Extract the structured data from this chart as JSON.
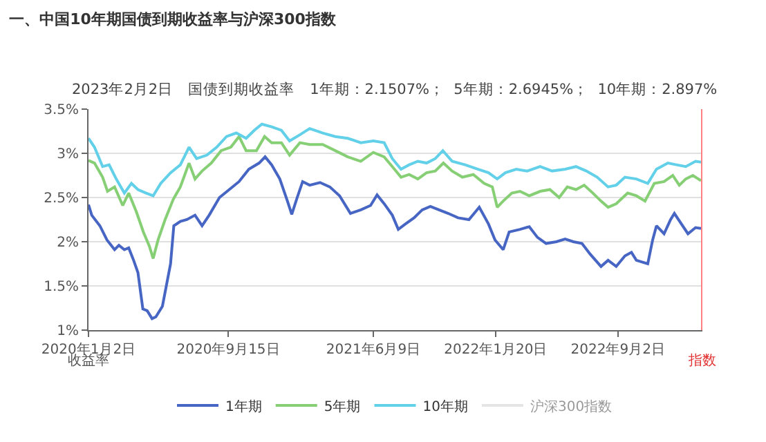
{
  "chart_data": {
    "type": "line",
    "title": "一、中国10年期国债到期收益率与沪深300指数",
    "subtitle": "2023年2月2日　国债到期收益率　1年期：2.1507%；  5年期：2.6945%；  10年期：2.897%",
    "ylabel": "收益率",
    "y2label": "指数",
    "xlim": [
      "2020-01-02",
      "2023-02-02"
    ],
    "xticks": [
      {
        "value": "2020-01-02",
        "label": "2020年1月2日"
      },
      {
        "value": "2020-09-15",
        "label": "2020年9月15日"
      },
      {
        "value": "2021-06-09",
        "label": "2021年6月9日"
      },
      {
        "value": "2022-01-20",
        "label": "2022年1月20日"
      },
      {
        "value": "2022-09-02",
        "label": "2022年9月2日"
      }
    ],
    "ylim": [
      1,
      3.5
    ],
    "yticks": [
      {
        "value": 1,
        "label": "1%"
      },
      {
        "value": 1.5,
        "label": "1.5%"
      },
      {
        "value": 2,
        "label": "2%"
      },
      {
        "value": 2.5,
        "label": "2.5%"
      },
      {
        "value": 3,
        "label": "3%"
      },
      {
        "value": 3.5,
        "label": "3.5%"
      }
    ],
    "grid": "y",
    "legend": "bottom",
    "marker": "none",
    "line_style": "solid",
    "series": [
      {
        "name": "1年期",
        "color": "#4766c4",
        "x": [
          "2020-01-02",
          "2020-01-08",
          "2020-01-23",
          "2020-02-05",
          "2020-02-19",
          "2020-02-27",
          "2020-03-08",
          "2020-03-16",
          "2020-03-25",
          "2020-04-02",
          "2020-04-11",
          "2020-04-19",
          "2020-04-28",
          "2020-05-05",
          "2020-05-17",
          "2020-06-01",
          "2020-06-07",
          "2020-06-19",
          "2020-07-01",
          "2020-07-16",
          "2020-07-29",
          "2020-08-11",
          "2020-08-30",
          "2020-09-17",
          "2020-10-05",
          "2020-10-23",
          "2020-11-11",
          "2020-11-22",
          "2020-12-04",
          "2020-12-19",
          "2021-01-02",
          "2021-01-10",
          "2021-01-20",
          "2021-01-30",
          "2021-02-12",
          "2021-03-03",
          "2021-03-21",
          "2021-04-08",
          "2021-04-28",
          "2021-05-17",
          "2021-06-04",
          "2021-06-16",
          "2021-06-29",
          "2021-07-14",
          "2021-07-25",
          "2021-08-07",
          "2021-08-23",
          "2021-09-07",
          "2021-09-22",
          "2021-10-08",
          "2021-10-25",
          "2021-11-12",
          "2021-12-02",
          "2021-12-21",
          "2022-01-07",
          "2022-01-19",
          "2022-02-03",
          "2022-02-14",
          "2022-03-06",
          "2022-03-23",
          "2022-04-07",
          "2022-04-23",
          "2022-05-12",
          "2022-05-28",
          "2022-06-12",
          "2022-06-28",
          "2022-07-13",
          "2022-08-02",
          "2022-08-15",
          "2022-08-30",
          "2022-09-15",
          "2022-09-27",
          "2022-10-06",
          "2022-10-27",
          "2022-11-05",
          "2022-11-12",
          "2022-11-26",
          "2022-12-08",
          "2022-12-15",
          "2022-12-28",
          "2023-01-09",
          "2023-01-23",
          "2023-02-02"
        ],
        "values": [
          2.42,
          2.3,
          2.18,
          2.02,
          1.91,
          1.96,
          1.91,
          1.93,
          1.79,
          1.65,
          1.24,
          1.22,
          1.13,
          1.15,
          1.27,
          1.75,
          2.18,
          2.23,
          2.25,
          2.3,
          2.18,
          2.3,
          2.5,
          2.59,
          2.68,
          2.82,
          2.89,
          2.96,
          2.87,
          2.71,
          2.46,
          2.31,
          2.5,
          2.68,
          2.64,
          2.67,
          2.62,
          2.52,
          2.32,
          2.36,
          2.41,
          2.53,
          2.43,
          2.3,
          2.14,
          2.2,
          2.27,
          2.36,
          2.4,
          2.36,
          2.32,
          2.27,
          2.25,
          2.39,
          2.2,
          2.02,
          1.91,
          2.11,
          2.14,
          2.17,
          2.05,
          1.98,
          2.0,
          2.03,
          2.0,
          1.98,
          1.86,
          1.72,
          1.79,
          1.72,
          1.84,
          1.88,
          1.79,
          1.75,
          2.02,
          2.18,
          2.09,
          2.25,
          2.32,
          2.2,
          2.09,
          2.16,
          2.15
        ]
      },
      {
        "name": "5年期",
        "color": "#86cf75",
        "x": [
          "2020-01-02",
          "2020-01-13",
          "2020-01-28",
          "2020-02-06",
          "2020-02-19",
          "2020-03-05",
          "2020-03-16",
          "2020-03-30",
          "2020-04-12",
          "2020-04-23",
          "2020-04-30",
          "2020-05-09",
          "2020-05-22",
          "2020-06-06",
          "2020-06-19",
          "2020-07-05",
          "2020-07-16",
          "2020-07-29",
          "2020-08-15",
          "2020-09-02",
          "2020-09-20",
          "2020-10-05",
          "2020-10-18",
          "2020-11-06",
          "2020-11-21",
          "2020-12-04",
          "2020-12-22",
          "2021-01-06",
          "2021-01-25",
          "2021-02-12",
          "2021-03-08",
          "2021-03-31",
          "2021-04-23",
          "2021-05-17",
          "2021-06-09",
          "2021-06-29",
          "2021-07-14",
          "2021-07-30",
          "2021-08-14",
          "2021-08-30",
          "2021-09-15",
          "2021-10-01",
          "2021-10-16",
          "2021-11-01",
          "2021-11-20",
          "2021-12-10",
          "2021-12-30",
          "2022-01-14",
          "2022-01-23",
          "2022-02-03",
          "2022-02-19",
          "2022-03-06",
          "2022-03-23",
          "2022-04-12",
          "2022-04-30",
          "2022-05-17",
          "2022-06-01",
          "2022-06-17",
          "2022-07-02",
          "2022-07-18",
          "2022-08-02",
          "2022-08-15",
          "2022-08-30",
          "2022-09-20",
          "2022-10-06",
          "2022-10-22",
          "2022-11-08",
          "2022-11-26",
          "2022-12-12",
          "2022-12-24",
          "2023-01-05",
          "2023-01-18",
          "2023-02-02"
        ],
        "values": [
          2.92,
          2.89,
          2.73,
          2.57,
          2.62,
          2.41,
          2.55,
          2.34,
          2.11,
          1.95,
          1.81,
          2.02,
          2.25,
          2.48,
          2.62,
          2.89,
          2.71,
          2.8,
          2.89,
          3.03,
          3.07,
          3.19,
          3.03,
          3.03,
          3.19,
          3.12,
          3.12,
          2.98,
          3.12,
          3.1,
          3.1,
          3.03,
          2.96,
          2.91,
          3.01,
          2.96,
          2.85,
          2.73,
          2.76,
          2.71,
          2.78,
          2.8,
          2.89,
          2.8,
          2.73,
          2.76,
          2.66,
          2.62,
          2.39,
          2.46,
          2.55,
          2.57,
          2.52,
          2.57,
          2.59,
          2.5,
          2.62,
          2.59,
          2.64,
          2.55,
          2.46,
          2.39,
          2.43,
          2.55,
          2.52,
          2.46,
          2.66,
          2.68,
          2.75,
          2.64,
          2.71,
          2.75,
          2.69
        ]
      },
      {
        "name": "10年期",
        "color": "#62d0e8",
        "x": [
          "2020-01-02",
          "2020-01-13",
          "2020-01-28",
          "2020-02-09",
          "2020-02-22",
          "2020-03-08",
          "2020-03-21",
          "2020-04-02",
          "2020-04-17",
          "2020-04-30",
          "2020-05-14",
          "2020-06-01",
          "2020-06-19",
          "2020-07-05",
          "2020-07-19",
          "2020-08-07",
          "2020-08-25",
          "2020-09-12",
          "2020-09-30",
          "2020-10-18",
          "2020-11-02",
          "2020-11-16",
          "2020-12-04",
          "2020-12-22",
          "2021-01-06",
          "2021-01-25",
          "2021-02-12",
          "2021-03-08",
          "2021-03-31",
          "2021-04-23",
          "2021-05-17",
          "2021-06-09",
          "2021-06-29",
          "2021-07-14",
          "2021-07-30",
          "2021-08-14",
          "2021-08-30",
          "2021-09-15",
          "2021-10-01",
          "2021-10-15",
          "2021-11-01",
          "2021-11-25",
          "2021-12-19",
          "2022-01-07",
          "2022-01-23",
          "2022-02-07",
          "2022-02-27",
          "2022-03-19",
          "2022-04-12",
          "2022-05-04",
          "2022-05-28",
          "2022-06-17",
          "2022-07-06",
          "2022-07-26",
          "2022-08-15",
          "2022-08-30",
          "2022-09-15",
          "2022-10-06",
          "2022-10-27",
          "2022-11-12",
          "2022-12-03",
          "2022-12-19",
          "2023-01-05",
          "2023-01-23",
          "2023-02-02"
        ],
        "values": [
          3.17,
          3.07,
          2.85,
          2.87,
          2.71,
          2.55,
          2.66,
          2.59,
          2.55,
          2.52,
          2.66,
          2.78,
          2.87,
          3.07,
          2.94,
          2.98,
          3.07,
          3.19,
          3.23,
          3.17,
          3.26,
          3.33,
          3.3,
          3.26,
          3.14,
          3.21,
          3.28,
          3.23,
          3.19,
          3.17,
          3.12,
          3.14,
          3.12,
          2.94,
          2.82,
          2.87,
          2.91,
          2.89,
          2.94,
          3.03,
          2.91,
          2.87,
          2.82,
          2.78,
          2.71,
          2.78,
          2.82,
          2.8,
          2.85,
          2.8,
          2.82,
          2.85,
          2.8,
          2.73,
          2.62,
          2.64,
          2.73,
          2.71,
          2.66,
          2.82,
          2.89,
          2.87,
          2.85,
          2.91,
          2.9
        ]
      },
      {
        "name": "沪深300指数",
        "color": "#cccccc",
        "values": [
          null
        ]
      }
    ]
  }
}
